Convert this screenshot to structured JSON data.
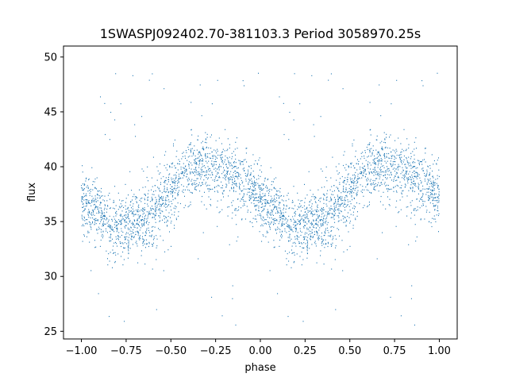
{
  "chart_data": {
    "type": "scatter",
    "title": "1SWASPJ092402.70-381103.3 Period 3058970.25s",
    "xlabel": "phase",
    "ylabel": "flux",
    "xlim": [
      -1.1,
      1.1
    ],
    "ylim": [
      24.3,
      51.0
    ],
    "xticks": [
      -1.0,
      -0.75,
      -0.5,
      -0.25,
      0.0,
      0.25,
      0.5,
      0.75,
      1.0
    ],
    "xtick_labels": [
      "−1.00",
      "−0.75",
      "−0.50",
      "−0.25",
      "0.00",
      "0.25",
      "0.50",
      "0.75",
      "1.00"
    ],
    "yticks": [
      25,
      30,
      35,
      40,
      45,
      50
    ],
    "ytick_labels": [
      "25",
      "30",
      "35",
      "40",
      "45",
      "50"
    ],
    "grid": false,
    "legend": "none",
    "marker_color": "#1f77b4",
    "marker": "point",
    "trend_phase": [
      -1.0,
      -0.95,
      -0.9,
      -0.85,
      -0.8,
      -0.75,
      -0.7,
      -0.65,
      -0.6,
      -0.55,
      -0.5,
      -0.45,
      -0.4,
      -0.35,
      -0.3,
      -0.25,
      -0.2,
      -0.15,
      -0.1,
      -0.05,
      0.0
    ],
    "trend_flux": [
      37.2,
      36.3,
      35.5,
      34.9,
      34.5,
      34.3,
      34.5,
      35.0,
      35.8,
      36.8,
      37.9,
      38.8,
      39.5,
      39.9,
      40.1,
      40.0,
      39.6,
      38.9,
      38.2,
      37.6,
      37.2
    ],
    "scatter_width": 1.5,
    "outlier_range": [
      25.5,
      49.5
    ]
  }
}
